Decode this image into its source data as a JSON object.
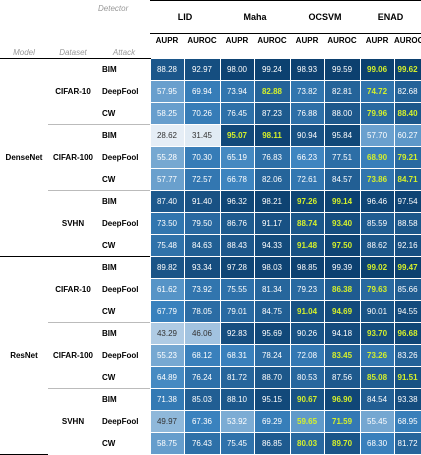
{
  "header": {
    "detector_label": "Detector",
    "model_label": "Model",
    "dataset_label": "Dataset",
    "attack_label": "Attack",
    "detectors": [
      "LID",
      "Maha",
      "OCSVM",
      "ENAD"
    ],
    "metrics": [
      "AUPR",
      "AUROC"
    ]
  },
  "colors": {
    "scale_light": "#e6eef6",
    "scale_dark": "#0b3f6e",
    "highlight_text": "#d4f02c"
  },
  "blocks": [
    {
      "model": "DenseNet",
      "groups": [
        {
          "dataset": "CIFAR-10",
          "rows": [
            {
              "attack": "BIM",
              "values": [
                "88.28",
                "92.97",
                "98.00",
                "99.24",
                "98.93",
                "99.59",
                "99.06",
                "99.62"
              ],
              "highlight": [
                6,
                7
              ]
            },
            {
              "attack": "DeepFool",
              "values": [
                "57.95",
                "69.94",
                "73.94",
                "82.88",
                "73.82",
                "82.81",
                "74.72",
                "82.68"
              ],
              "highlight": [
                3,
                6
              ]
            },
            {
              "attack": "CW",
              "values": [
                "58.25",
                "70.26",
                "76.45",
                "87.23",
                "76.88",
                "88.00",
                "79.96",
                "88.40"
              ],
              "highlight": [
                6,
                7
              ]
            }
          ]
        },
        {
          "dataset": "CIFAR-100",
          "rows": [
            {
              "attack": "BIM",
              "values": [
                "28.62",
                "31.45",
                "95.07",
                "98.11",
                "90.94",
                "95.84",
                "57.70",
                "60.27"
              ],
              "highlight": [
                2,
                3
              ]
            },
            {
              "attack": "DeepFool",
              "values": [
                "55.28",
                "70.30",
                "65.19",
                "76.83",
                "66.23",
                "77.51",
                "68.90",
                "79.21"
              ],
              "highlight": [
                6,
                7
              ]
            },
            {
              "attack": "CW",
              "values": [
                "57.77",
                "72.57",
                "66.78",
                "82.06",
                "72.61",
                "84.57",
                "73.86",
                "84.71"
              ],
              "highlight": [
                6,
                7
              ]
            }
          ]
        },
        {
          "dataset": "SVHN",
          "rows": [
            {
              "attack": "BIM",
              "values": [
                "87.40",
                "91.40",
                "96.32",
                "98.21",
                "97.26",
                "99.14",
                "96.46",
                "97.54"
              ],
              "highlight": [
                4,
                5
              ]
            },
            {
              "attack": "DeepFool",
              "values": [
                "73.50",
                "79.50",
                "86.76",
                "91.17",
                "88.74",
                "93.40",
                "85.59",
                "88.58"
              ],
              "highlight": [
                4,
                5
              ]
            },
            {
              "attack": "CW",
              "values": [
                "75.48",
                "84.63",
                "88.43",
                "94.33",
                "91.48",
                "97.50",
                "88.62",
                "92.16"
              ],
              "highlight": [
                4,
                5
              ]
            }
          ]
        }
      ]
    },
    {
      "model": "ResNet",
      "groups": [
        {
          "dataset": "CIFAR-10",
          "rows": [
            {
              "attack": "BIM",
              "values": [
                "89.82",
                "93.34",
                "97.28",
                "98.03",
                "98.85",
                "99.39",
                "99.02",
                "99.47"
              ],
              "highlight": [
                6,
                7
              ]
            },
            {
              "attack": "DeepFool",
              "values": [
                "61.62",
                "73.92",
                "75.55",
                "81.34",
                "79.23",
                "86.38",
                "79.63",
                "85.66"
              ],
              "highlight": [
                5,
                6
              ]
            },
            {
              "attack": "CW",
              "values": [
                "67.79",
                "78.05",
                "79.01",
                "84.75",
                "91.04",
                "94.69",
                "90.01",
                "94.55"
              ],
              "highlight": [
                4,
                5
              ]
            }
          ]
        },
        {
          "dataset": "CIFAR-100",
          "rows": [
            {
              "attack": "BIM",
              "values": [
                "43.29",
                "46.06",
                "92.83",
                "95.69",
                "90.26",
                "94.18",
                "93.70",
                "96.68"
              ],
              "highlight": [
                6,
                7
              ]
            },
            {
              "attack": "DeepFool",
              "values": [
                "55.23",
                "68.12",
                "68.31",
                "78.24",
                "72.08",
                "83.45",
                "73.26",
                "83.26"
              ],
              "highlight": [
                5,
                6
              ]
            },
            {
              "attack": "CW",
              "values": [
                "64.89",
                "76.24",
                "81.72",
                "88.70",
                "80.53",
                "87.56",
                "85.08",
                "91.51"
              ],
              "highlight": [
                6,
                7
              ]
            }
          ]
        },
        {
          "dataset": "SVHN",
          "rows": [
            {
              "attack": "BIM",
              "values": [
                "71.38",
                "85.03",
                "88.10",
                "95.15",
                "90.67",
                "96.90",
                "84.54",
                "93.38"
              ],
              "highlight": [
                4,
                5
              ]
            },
            {
              "attack": "DeepFool",
              "values": [
                "49.97",
                "67.36",
                "53.92",
                "69.29",
                "59.65",
                "71.59",
                "55.45",
                "68.95"
              ],
              "highlight": [
                4,
                5
              ]
            },
            {
              "attack": "CW",
              "values": [
                "58.75",
                "76.43",
                "75.45",
                "86.85",
                "80.03",
                "89.70",
                "68.30",
                "81.72"
              ],
              "highlight": [
                4,
                5
              ]
            }
          ]
        }
      ]
    }
  ]
}
